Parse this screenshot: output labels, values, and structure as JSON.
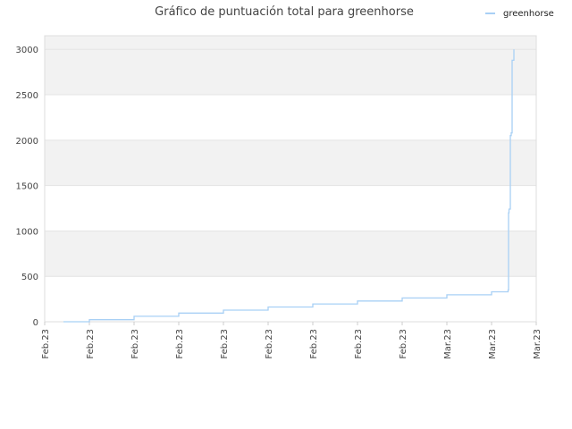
{
  "chart_data": {
    "type": "line",
    "title": "Gráfico de puntuación total para greenhorse",
    "xlabel": "",
    "ylabel": "",
    "ylim": [
      0,
      3150
    ],
    "y_ticks": [
      0,
      500,
      1000,
      1500,
      2000,
      2500,
      3000
    ],
    "x_tick_labels": [
      "Feb.23",
      "Feb.23",
      "Feb.23",
      "Feb.23",
      "Feb.23",
      "Feb.23",
      "Feb.23",
      "Feb.23",
      "Feb.23",
      "Mar.23",
      "Mar.23",
      "Mar.23"
    ],
    "grid": true,
    "band_colors": [
      "#f2f2f2",
      "#ffffff"
    ],
    "legend": {
      "position": "top-right"
    },
    "series": [
      {
        "name": "greenhorse",
        "color": "#a8d0f5",
        "x": [
          0.42,
          1.0,
          2.0,
          3.0,
          4.0,
          5.0,
          6.0,
          7.0,
          8.0,
          9.0,
          10.0,
          10.37,
          10.38,
          10.39,
          10.42,
          10.44,
          10.46,
          10.5
        ],
        "y": [
          0,
          23,
          60,
          95,
          128,
          162,
          196,
          228,
          262,
          296,
          330,
          350,
          1200,
          1240,
          2050,
          2080,
          2880,
          3000
        ]
      }
    ]
  }
}
